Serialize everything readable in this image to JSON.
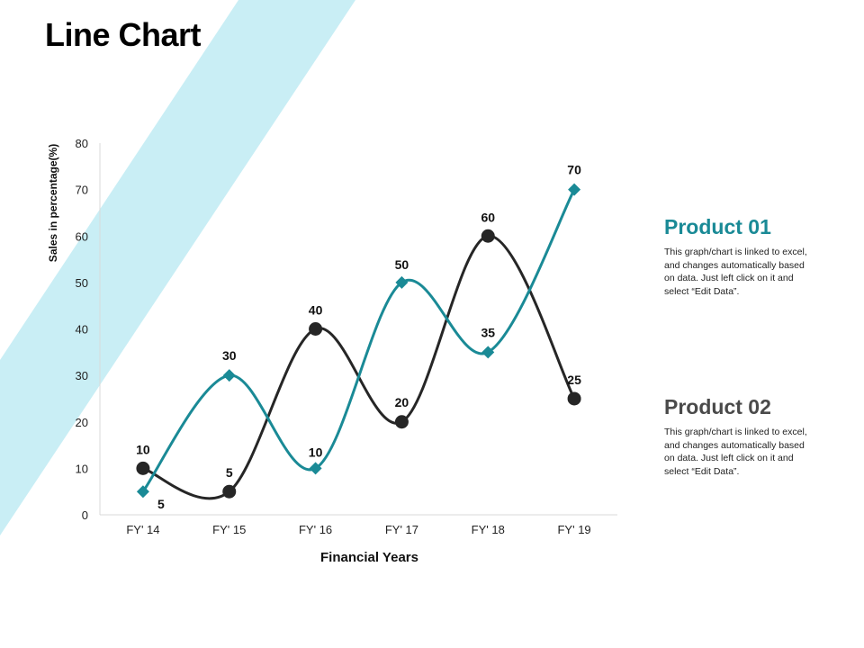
{
  "page": {
    "title": "Line Chart"
  },
  "colors": {
    "product01": "#1a8a96",
    "product02": "#262626",
    "band": "#c9eef5",
    "axis": "#d9d9d9"
  },
  "legend": [
    {
      "title": "Product 01",
      "description": "This graph/chart is linked to excel, and changes automatically based on data. Just left click on it and select “Edit Data”."
    },
    {
      "title": "Product 02",
      "description": "This graph/chart is linked to excel, and changes automatically based on data. Just left click on it and select “Edit Data”."
    }
  ],
  "chart_data": {
    "type": "line",
    "title": "Line Chart",
    "xlabel": "Financial Years",
    "ylabel": "Sales in percentage(%)",
    "categories": [
      "FY' 14",
      "FY' 15",
      "FY' 16",
      "FY' 17",
      "FY' 18",
      "FY' 19"
    ],
    "ylim": [
      0,
      80
    ],
    "yticks": [
      0,
      10,
      20,
      30,
      40,
      50,
      60,
      70,
      80
    ],
    "grid": false,
    "series": [
      {
        "name": "Product 01",
        "marker": "diamond",
        "values": [
          5,
          30,
          10,
          50,
          35,
          70
        ]
      },
      {
        "name": "Product 02",
        "marker": "circle",
        "values": [
          10,
          5,
          40,
          20,
          60,
          25
        ]
      }
    ]
  }
}
